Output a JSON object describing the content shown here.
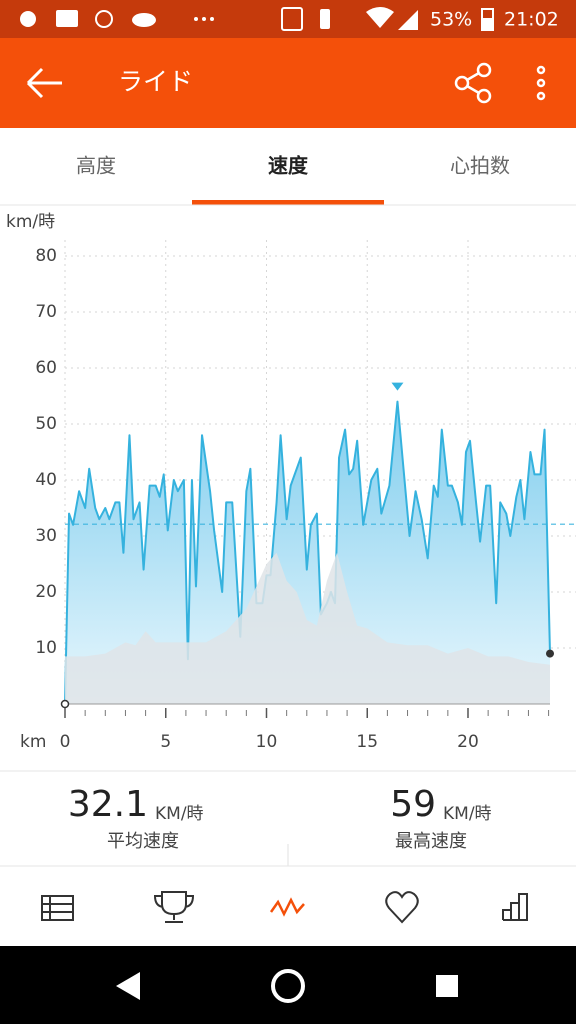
{
  "status": {
    "battery": "53%",
    "time": "21:02"
  },
  "app_bar": {
    "title": "ライド"
  },
  "tabs": [
    "高度",
    "速度",
    "心拍数"
  ],
  "active_tab": 1,
  "chart_data": {
    "type": "area",
    "y_label": "km/時",
    "x_label": "km",
    "xlim": [
      0,
      24.07
    ],
    "ylim": [
      0,
      80
    ],
    "xticks": [
      0,
      5,
      10,
      15,
      20
    ],
    "xminor": [
      1,
      2,
      3,
      4,
      6,
      7,
      8,
      9,
      11,
      12,
      13,
      14,
      16,
      17,
      18,
      19,
      21,
      22,
      23,
      24
    ],
    "yticks": [
      10,
      20,
      30,
      40,
      50,
      60,
      70,
      80
    ],
    "grid": true,
    "series": [
      {
        "color": "#35b2de",
        "x": [
          0,
          0.2,
          0.4,
          0.7,
          1.0,
          1.2,
          1.5,
          1.7,
          2.0,
          2.2,
          2.5,
          2.7,
          2.9,
          3.2,
          3.4,
          3.7,
          3.9,
          4.2,
          4.5,
          4.7,
          4.9,
          5.1,
          5.4,
          5.6,
          5.9,
          6.1,
          6.3,
          6.5,
          6.8,
          7.2,
          7.4,
          7.8,
          8.0,
          8.3,
          8.7,
          9.0,
          9.2,
          9.5,
          9.8,
          10.0,
          10.2,
          10.5,
          10.7,
          11.0,
          11.2,
          11.4,
          11.7,
          12.0,
          12.2,
          12.5,
          12.7,
          13.0,
          13.2,
          13.4,
          13.6,
          13.9,
          14.1,
          14.3,
          14.5,
          14.8,
          15.2,
          15.5,
          15.7,
          16.1,
          16.5,
          16.8,
          17.1,
          17.4,
          17.7,
          18.0,
          18.3,
          18.5,
          18.7,
          19.0,
          19.2,
          19.5,
          19.7,
          19.9,
          20.1,
          20.4,
          20.6,
          20.9,
          21.1,
          21.4,
          21.6,
          21.9,
          22.1,
          22.4,
          22.6,
          22.8,
          23.1,
          23.3,
          23.6,
          23.8,
          24.07
        ],
        "values": [
          0,
          34,
          32,
          38,
          35,
          42,
          35,
          33,
          35,
          33,
          36,
          36,
          27,
          48,
          33,
          36,
          24,
          39,
          39,
          37,
          41,
          31,
          40,
          38,
          40,
          8,
          40,
          21,
          48,
          38,
          31,
          20,
          36,
          36,
          12,
          38,
          42,
          18,
          18,
          23,
          23,
          36,
          48,
          33,
          39,
          41,
          44,
          24,
          32,
          34,
          16,
          18,
          20,
          18,
          44,
          49,
          41,
          42,
          47,
          32,
          40,
          42,
          34,
          39,
          54,
          42,
          30,
          38,
          33,
          26,
          39,
          37,
          49,
          39,
          39,
          36,
          32,
          45,
          47,
          36,
          29,
          39,
          39,
          18,
          36,
          34,
          30,
          37,
          40,
          33,
          45,
          41,
          41,
          49,
          9
        ]
      },
      {
        "color": "#dfe4e7",
        "x": [
          0,
          1,
          2,
          3,
          3.5,
          4,
          4.5,
          5,
          6,
          7,
          8,
          9,
          10,
          10.5,
          11,
          11.5,
          12,
          12.5,
          13,
          13.5,
          14,
          14.5,
          15,
          16,
          17,
          18,
          19,
          20,
          21,
          22,
          23,
          24.07
        ],
        "values": [
          8.5,
          8.5,
          9,
          11,
          10.5,
          13,
          11,
          11,
          11,
          11,
          13,
          17,
          25,
          27,
          22,
          20,
          15,
          14,
          22,
          27,
          20,
          14,
          13.5,
          11,
          10.5,
          10.5,
          9,
          10,
          8.5,
          8.5,
          7.5,
          7
        ]
      }
    ]
  },
  "stats": [
    {
      "value": 32.1,
      "unit": "KM/時",
      "label": "平均速度"
    },
    {
      "value": 59,
      "unit": "KM/時",
      "label": "最高速度"
    }
  ]
}
